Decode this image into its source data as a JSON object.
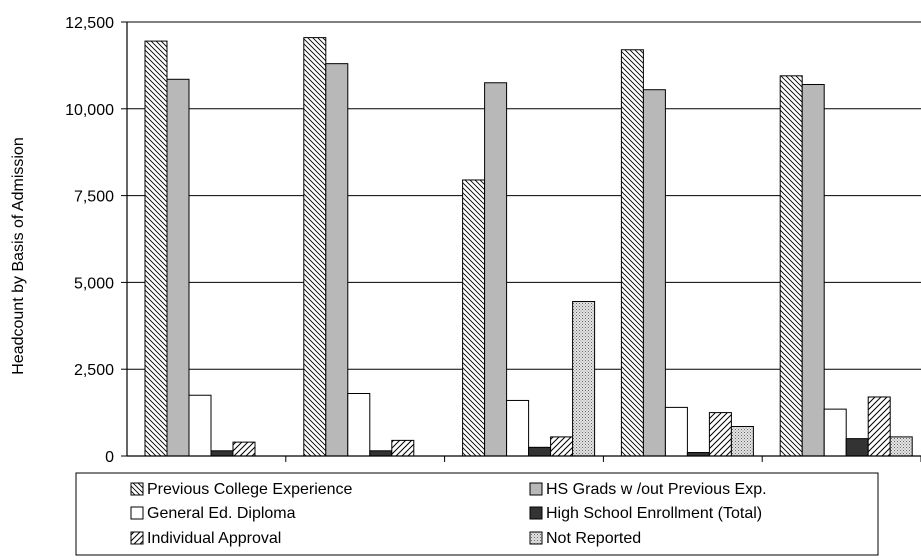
{
  "chart_data": {
    "type": "bar",
    "ylabel": "Headcount by Basis of Admission",
    "ylim": [
      0,
      12500
    ],
    "yticks": [
      0,
      2500,
      5000,
      7500,
      10000,
      12500
    ],
    "ytick_labels": [
      "0",
      "2,500",
      "5,000",
      "7,500",
      "10,000",
      "12,500"
    ],
    "grid": true,
    "legend_position": "bottom",
    "categories": [
      "",
      "",
      "",
      "",
      ""
    ],
    "series": [
      {
        "name": "Previous College Experience",
        "values": [
          11950,
          12050,
          7950,
          11700,
          10950
        ],
        "pattern": "hatch-back",
        "color": "#ffffff"
      },
      {
        "name": "HS Grads w /out Previous Exp.",
        "values": [
          10850,
          11300,
          10750,
          10550,
          10700
        ],
        "pattern": "solid",
        "color": "#b8b8b8"
      },
      {
        "name": "General Ed. Diploma",
        "values": [
          1750,
          1800,
          1600,
          1400,
          1350
        ],
        "pattern": "solid",
        "color": "#ffffff"
      },
      {
        "name": "High School Enrollment (Total)",
        "values": [
          150,
          150,
          250,
          100,
          500
        ],
        "pattern": "solid",
        "color": "#333333"
      },
      {
        "name": "Individual Approval",
        "values": [
          400,
          450,
          550,
          1250,
          1700
        ],
        "pattern": "hatch-fwd",
        "color": "#ffffff"
      },
      {
        "name": "Not Reported",
        "values": [
          0,
          0,
          4450,
          850,
          550
        ],
        "pattern": "dots",
        "color": "#d8d8d8"
      }
    ]
  }
}
